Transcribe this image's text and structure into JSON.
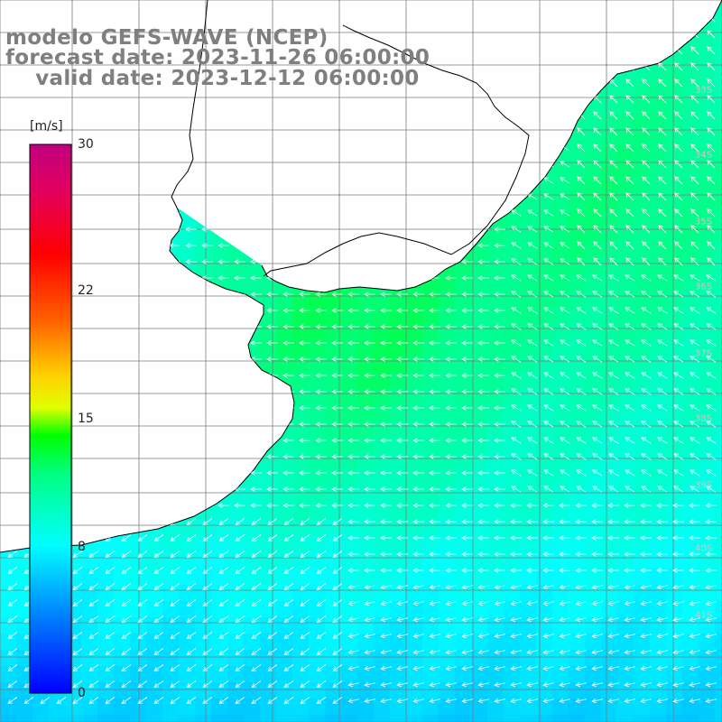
{
  "header": {
    "line1": "modelo GEFS-WAVE (NCEP)",
    "line2": "forecast date: 2023-11-26 06:00:00",
    "line3": "    valid date: 2023-12-12 06:00:00"
  },
  "colorbar": {
    "unit": "[m/s]",
    "min": 0,
    "max": 30,
    "ticks": [
      {
        "value": 30,
        "label": "30"
      },
      {
        "value": 22,
        "label": "22"
      },
      {
        "value": 15,
        "label": "15"
      },
      {
        "value": 8,
        "label": "8"
      },
      {
        "value": 0,
        "label": "0"
      }
    ],
    "colors": [
      "#0000ff",
      "#00a0ff",
      "#00ffff",
      "#00ff00",
      "#ffff00",
      "#ff8000",
      "#ff0000",
      "#c00080"
    ]
  },
  "lat_labels": [
    "33S",
    "34S",
    "35S",
    "36S",
    "37S",
    "38S",
    "39S",
    "40S",
    "41S"
  ],
  "map": {
    "land_color": "#ffffff",
    "coast_color": "#000000",
    "grid_color": "#777777",
    "arrow_color": "#ffffff",
    "wind_direction": "from east / northeast"
  }
}
